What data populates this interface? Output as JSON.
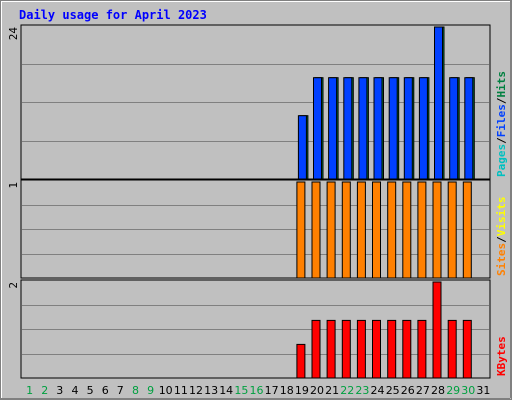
{
  "chart_data": {
    "type": "bar",
    "title": "Daily usage for April 2023",
    "categories": [
      "1",
      "2",
      "3",
      "4",
      "5",
      "6",
      "7",
      "8",
      "9",
      "10",
      "11",
      "12",
      "13",
      "14",
      "15",
      "16",
      "17",
      "18",
      "19",
      "20",
      "21",
      "22",
      "23",
      "24",
      "25",
      "26",
      "27",
      "28",
      "29",
      "30",
      "31"
    ],
    "weekend_days": [
      1,
      2,
      8,
      9,
      15,
      16,
      22,
      23,
      29,
      30
    ],
    "panels": [
      {
        "id": "hits-files-pages",
        "max_label": "24",
        "ylim": [
          0,
          24
        ],
        "legend": [
          {
            "label": "Pages",
            "color": "#00c0c0"
          },
          {
            "label": "/",
            "color": "#000000"
          },
          {
            "label": "Files",
            "color": "#0040ff"
          },
          {
            "label": "/",
            "color": "#000000"
          },
          {
            "label": "Hits",
            "color": "#008040"
          }
        ],
        "series": [
          {
            "name": "Hits",
            "color": "#008040",
            "values": [
              0,
              0,
              0,
              0,
              0,
              0,
              0,
              0,
              0,
              0,
              0,
              0,
              0,
              0,
              0,
              0,
              0,
              0,
              10,
              16,
              16,
              16,
              16,
              16,
              16,
              16,
              16,
              24,
              16,
              16,
              0
            ]
          },
          {
            "name": "Files",
            "color": "#0040ff",
            "values": [
              0,
              0,
              0,
              0,
              0,
              0,
              0,
              0,
              0,
              0,
              0,
              0,
              0,
              0,
              0,
              0,
              0,
              0,
              10,
              16,
              16,
              16,
              16,
              16,
              16,
              16,
              16,
              24,
              16,
              16,
              0
            ]
          },
          {
            "name": "Pages",
            "color": "#00c0c0",
            "values": [
              0,
              0,
              0,
              0,
              0,
              0,
              0,
              0,
              0,
              0,
              0,
              0,
              0,
              0,
              0,
              0,
              0,
              0,
              0,
              0,
              0,
              0,
              0,
              0,
              0,
              0,
              0,
              0,
              0,
              0,
              0
            ]
          }
        ]
      },
      {
        "id": "visits-sites",
        "max_label": "1",
        "ylim": [
          0,
          1
        ],
        "legend": [
          {
            "label": "Sites",
            "color": "#ff8000"
          },
          {
            "label": "/",
            "color": "#000000"
          },
          {
            "label": "Visits",
            "color": "#ffff00"
          }
        ],
        "series": [
          {
            "name": "Visits",
            "color": "#ffff00",
            "values": [
              0,
              0,
              0,
              0,
              0,
              0,
              0,
              0,
              0,
              0,
              0,
              0,
              0,
              0,
              0,
              0,
              0,
              0,
              0,
              0,
              0,
              0,
              0,
              0,
              0,
              0,
              0,
              0,
              0,
              0,
              0
            ]
          },
          {
            "name": "Sites",
            "color": "#ff8000",
            "values": [
              0,
              0,
              0,
              0,
              0,
              0,
              0,
              0,
              0,
              0,
              0,
              0,
              0,
              0,
              0,
              0,
              0,
              0,
              1,
              1,
              1,
              1,
              1,
              1,
              1,
              1,
              1,
              1,
              1,
              1,
              0
            ]
          }
        ]
      },
      {
        "id": "kbytes",
        "max_label": "2",
        "ylim": [
          0,
          2
        ],
        "legend": [
          {
            "label": "KBytes",
            "color": "#ff0000"
          }
        ],
        "series": [
          {
            "name": "KBytes",
            "color": "#ff0000",
            "values": [
              0,
              0,
              0,
              0,
              0,
              0,
              0,
              0,
              0,
              0,
              0,
              0,
              0,
              0,
              0,
              0,
              0,
              0,
              0.7,
              1.2,
              1.2,
              1.2,
              1.2,
              1.2,
              1.2,
              1.2,
              1.2,
              2,
              1.2,
              1.2,
              0
            ]
          }
        ]
      }
    ],
    "colors": {
      "plot_background": "#c0c0c0",
      "grid": "#808080",
      "title": "#0000ff",
      "weekday_label": "#000000",
      "weekend_label": "#00a040"
    }
  }
}
